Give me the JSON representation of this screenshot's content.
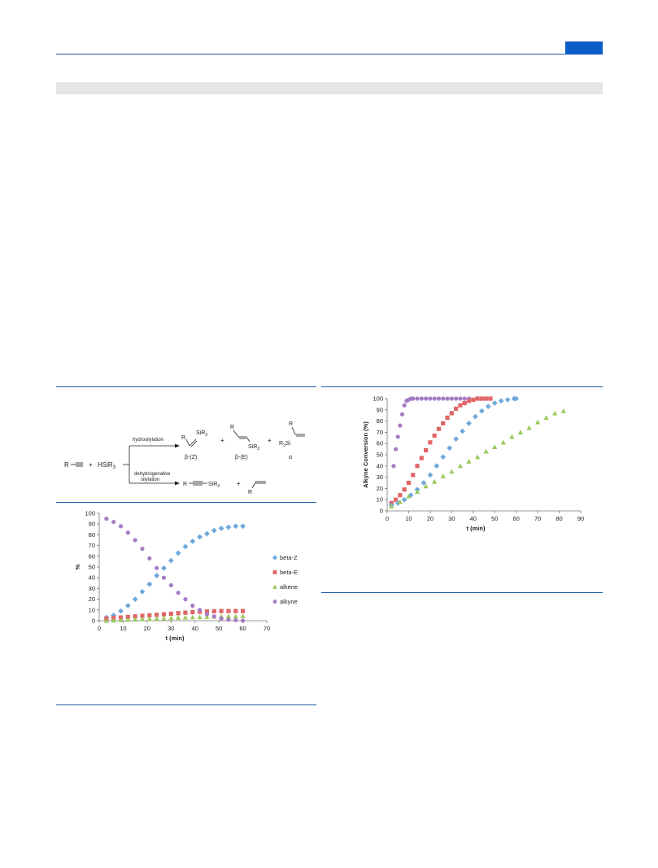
{
  "colors": {
    "header_rule": "#1f5aa6",
    "header_tab": "#0a5cc6",
    "table_band": "#e6e6e6",
    "beta_Z": "#6fa8dc",
    "beta_E": "#e06666",
    "alkene": "#9bc95b",
    "alkyne": "#a57cc6"
  },
  "scheme": {
    "reactant_alkyne": "R",
    "plus1": "+",
    "silane": "HSiR",
    "silane_sub": "3",
    "arrow_top_label": "hydrosilylation",
    "arrow_bottom_label_1": "dehydrogenative",
    "arrow_bottom_label_2": "silylation",
    "product_z_label": "β-(Z)",
    "product_e_label": "β-(E)",
    "product_alpha_label": "α",
    "sir3": "SiR",
    "r3si": "R",
    "sub3": "3",
    "r": "R",
    "plus": "+"
  },
  "chart_data": [
    {
      "type": "scatter",
      "xlabel": "t (min)",
      "ylabel": "%",
      "xlim": [
        0,
        70
      ],
      "ylim": [
        0,
        100
      ],
      "xticks": [
        "0",
        "10",
        "20",
        "30",
        "40",
        "50",
        "60",
        "70"
      ],
      "yticks": [
        "0",
        "10",
        "20",
        "30",
        "40",
        "50",
        "60",
        "70",
        "80",
        "90",
        "100"
      ],
      "legend": "right",
      "series": [
        {
          "name": "beta-Z",
          "marker": "diamond",
          "color": "#6fa8dc",
          "x": [
            3,
            6,
            9,
            12,
            15,
            18,
            21,
            24,
            27,
            30,
            33,
            36,
            39,
            42,
            45,
            48,
            51,
            54,
            57,
            60
          ],
          "y": [
            3,
            5,
            9,
            14,
            20,
            27,
            34,
            42,
            49,
            56,
            63,
            69,
            74,
            78,
            81,
            84,
            86,
            87,
            88,
            88
          ]
        },
        {
          "name": "beta-E",
          "marker": "square",
          "color": "#e06666",
          "x": [
            3,
            6,
            9,
            12,
            15,
            18,
            21,
            24,
            27,
            30,
            33,
            36,
            39,
            42,
            45,
            48,
            51,
            54,
            57,
            60
          ],
          "y": [
            2,
            2.5,
            3,
            3.5,
            4,
            4.5,
            5,
            5.5,
            6,
            6.5,
            7,
            7.5,
            8,
            8.3,
            8.6,
            8.8,
            9,
            9,
            9,
            9
          ]
        },
        {
          "name": "alkene",
          "marker": "triangle",
          "color": "#9bc95b",
          "x": [
            3,
            6,
            9,
            12,
            15,
            18,
            21,
            24,
            27,
            30,
            33,
            36,
            39,
            42,
            45,
            48,
            51,
            54,
            57,
            60
          ],
          "y": [
            0,
            0.3,
            0.6,
            0.9,
            1.2,
            1.5,
            1.8,
            2,
            2.3,
            2.5,
            2.8,
            3,
            3.2,
            3.4,
            3.6,
            3.8,
            4,
            4.1,
            4.2,
            4.3
          ]
        },
        {
          "name": "alkyne",
          "marker": "circle",
          "color": "#a57cc6",
          "x": [
            3,
            6,
            9,
            12,
            15,
            18,
            21,
            24,
            27,
            30,
            33,
            36,
            39,
            42,
            45,
            48,
            51,
            54,
            57,
            60
          ],
          "y": [
            95,
            92,
            88,
            82,
            75,
            67,
            58,
            49,
            40,
            33,
            26,
            20,
            14,
            10,
            6,
            4,
            2,
            1,
            0.5,
            0
          ]
        }
      ]
    },
    {
      "type": "scatter",
      "xlabel": "t (min)",
      "ylabel": "Alkyne Conversion (%)",
      "xlim": [
        0,
        90
      ],
      "ylim": [
        0,
        100
      ],
      "xticks": [
        "0",
        "10",
        "20",
        "30",
        "40",
        "50",
        "60",
        "70",
        "80",
        "90"
      ],
      "yticks": [
        "0",
        "10",
        "20",
        "30",
        "40",
        "50",
        "60",
        "70",
        "80",
        "90",
        "100"
      ],
      "series": [
        {
          "marker": "circle",
          "color": "#a57cc6",
          "x": [
            3,
            4,
            5,
            6,
            7,
            8,
            9,
            10,
            11,
            12,
            14,
            16,
            18,
            20,
            22,
            24,
            26,
            28,
            30,
            32,
            34,
            36,
            38
          ],
          "y": [
            40,
            55,
            66,
            76,
            86,
            94,
            98,
            99,
            100,
            100,
            100,
            100,
            100,
            100,
            100,
            100,
            100,
            100,
            100,
            100,
            100,
            100,
            100
          ]
        },
        {
          "marker": "square",
          "color": "#e06666",
          "x": [
            2,
            4,
            6,
            8,
            10,
            12,
            14,
            16,
            18,
            20,
            22,
            24,
            26,
            28,
            30,
            32,
            34,
            36,
            38,
            40,
            42,
            44,
            46,
            48
          ],
          "y": [
            7,
            10,
            14,
            19,
            25,
            32,
            40,
            47,
            54,
            61,
            67,
            73,
            78,
            83,
            87,
            91,
            94,
            96,
            98,
            99,
            100,
            100,
            100,
            100
          ]
        },
        {
          "marker": "diamond",
          "color": "#6fa8dc",
          "x": [
            2,
            5,
            8,
            11,
            14,
            17,
            20,
            23,
            26,
            29,
            32,
            35,
            38,
            41,
            44,
            47,
            50,
            53,
            56,
            59,
            60
          ],
          "y": [
            5,
            7,
            10,
            14,
            19,
            25,
            32,
            40,
            48,
            56,
            64,
            71,
            78,
            84,
            89,
            93,
            96,
            98,
            99,
            100,
            100
          ]
        },
        {
          "marker": "triangle",
          "color": "#9bc95b",
          "x": [
            2,
            6,
            10,
            14,
            18,
            22,
            26,
            30,
            34,
            38,
            42,
            46,
            50,
            54,
            58,
            62,
            66,
            70,
            74,
            78,
            82
          ],
          "y": [
            4,
            8,
            13,
            17,
            22,
            26,
            31,
            35,
            40,
            44,
            48,
            53,
            57,
            61,
            66,
            70,
            74,
            79,
            83,
            87,
            89
          ]
        }
      ]
    }
  ]
}
